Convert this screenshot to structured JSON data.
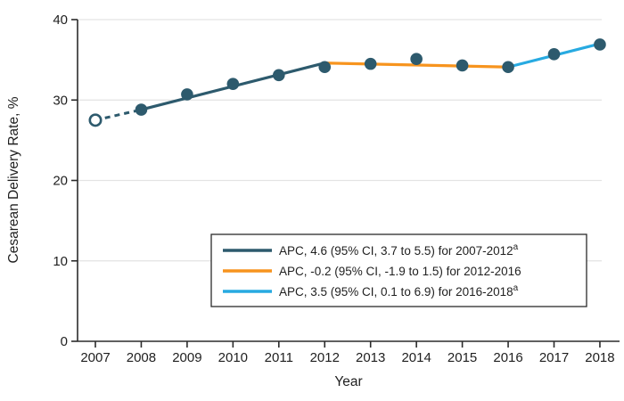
{
  "figure_name": "cesarean-delivery-rate-trend-chart",
  "colors": {
    "segment_2007_2012": "#2d5a6d",
    "segment_2012_2016": "#f7941e",
    "segment_2016_2018": "#27aae1",
    "marker": "#2d5a6d",
    "open_marker_fill": "#ffffff",
    "axis": "#2b2b2b",
    "gridline": "#e3e3e3",
    "text": "#1f1f1f",
    "legend_border": "#2b2b2b",
    "legend_background": "#ffffff"
  },
  "chart_data": {
    "type": "line",
    "title": "",
    "xlabel": "Year",
    "ylabel": "Cesarean Delivery Rate, %",
    "ylim": [
      0,
      40
    ],
    "yticks": [
      0,
      10,
      20,
      30,
      40
    ],
    "xticks": [
      2007,
      2008,
      2009,
      2010,
      2011,
      2012,
      2013,
      2014,
      2015,
      2016,
      2017,
      2018
    ],
    "grid": "horizontal",
    "legend_position": "inside-lower-right",
    "observed_points": {
      "years": [
        2007,
        2008,
        2009,
        2010,
        2011,
        2012,
        2013,
        2014,
        2015,
        2016,
        2017,
        2018
      ],
      "values": [
        27.5,
        28.8,
        30.7,
        32.0,
        33.1,
        34.1,
        34.5,
        35.1,
        34.3,
        34.1,
        35.7,
        36.9
      ],
      "open_marker_years": [
        2007
      ]
    },
    "trend_segments": [
      {
        "label": "APC, 4.6 (95% CI, 3.7 to 5.5) for 2007-2012",
        "superscript": "a",
        "color": "#2d5a6d",
        "x": [
          2008,
          2012
        ],
        "y": [
          28.8,
          34.6
        ],
        "dashed_lead": {
          "x": [
            2007,
            2008
          ],
          "y": [
            27.5,
            28.8
          ]
        }
      },
      {
        "label": "APC, -0.2 (95% CI, -1.9 to 1.5) for 2012-2016",
        "superscript": "",
        "color": "#f7941e",
        "x": [
          2012,
          2016
        ],
        "y": [
          34.6,
          34.1
        ]
      },
      {
        "label": "APC, 3.5 (95% CI, 0.1 to 6.9) for 2016-2018",
        "superscript": "a",
        "color": "#27aae1",
        "x": [
          2016,
          2018
        ],
        "y": [
          34.1,
          37.0
        ]
      }
    ]
  }
}
